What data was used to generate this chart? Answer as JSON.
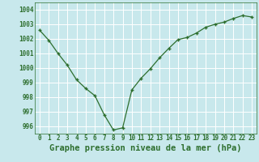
{
  "x": [
    0,
    1,
    2,
    3,
    4,
    5,
    6,
    7,
    8,
    9,
    10,
    11,
    12,
    13,
    14,
    15,
    16,
    17,
    18,
    19,
    20,
    21,
    22,
    23
  ],
  "y": [
    1002.6,
    1001.9,
    1001.0,
    1000.2,
    999.2,
    998.6,
    998.1,
    996.8,
    995.75,
    995.9,
    998.5,
    999.3,
    999.95,
    1000.7,
    1001.35,
    1001.95,
    1002.1,
    1002.4,
    1002.8,
    1003.0,
    1003.15,
    1003.4,
    1003.6,
    1003.5
  ],
  "ylim": [
    995.5,
    1004.5
  ],
  "yticks": [
    996,
    997,
    998,
    999,
    1000,
    1001,
    1002,
    1003,
    1004
  ],
  "xticks": [
    0,
    1,
    2,
    3,
    4,
    5,
    6,
    7,
    8,
    9,
    10,
    11,
    12,
    13,
    14,
    15,
    16,
    17,
    18,
    19,
    20,
    21,
    22,
    23
  ],
  "xlabel": "Graphe pression niveau de la mer (hPa)",
  "line_color": "#2d6e2d",
  "marker": "+",
  "bg_color": "#c8e8ec",
  "grid_color": "#ffffff",
  "text_color": "#2d6e2d",
  "tick_label_fontsize": 5.5,
  "xlabel_fontsize": 7.5,
  "xlim_left": -0.5,
  "xlim_right": 23.5
}
